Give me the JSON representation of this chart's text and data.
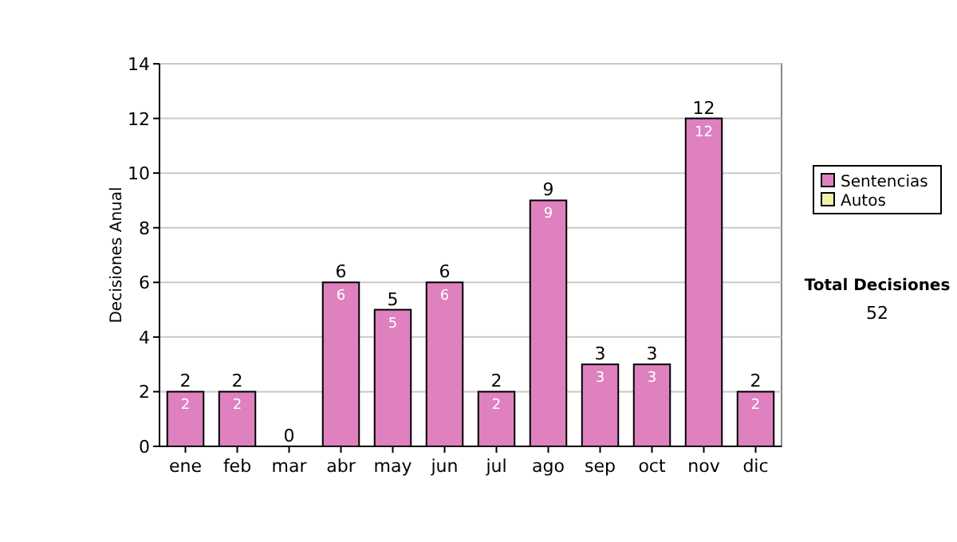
{
  "chart_data": {
    "type": "bar",
    "stacked": true,
    "categories": [
      "ene",
      "feb",
      "mar",
      "abr",
      "may",
      "jun",
      "jul",
      "ago",
      "sep",
      "oct",
      "nov",
      "dic"
    ],
    "series": [
      {
        "name": "Sentencias",
        "color": "#df80bf",
        "values": [
          2,
          2,
          0,
          6,
          5,
          6,
          2,
          9,
          3,
          3,
          12,
          2
        ],
        "value_labels": [
          "2",
          "2",
          null,
          "6",
          "5",
          "6",
          "2",
          "9",
          "3",
          "3",
          "12",
          "2"
        ]
      },
      {
        "name": "Autos",
        "color": "#f0f0a8",
        "values": [
          0,
          0,
          0,
          0,
          0,
          0,
          0,
          0,
          0,
          0,
          0,
          0
        ]
      }
    ],
    "totals": [
      "2",
      "2",
      "0",
      "6",
      "5",
      "6",
      "2",
      "9",
      "3",
      "3",
      "12",
      "2"
    ],
    "ylabel": "Decisiones Anual",
    "ylim": [
      0,
      14
    ],
    "yticks": [
      0,
      2,
      4,
      6,
      8,
      10,
      12,
      14
    ],
    "grid": "y",
    "legend": "right",
    "annotations": [
      "Total Decisiones",
      "52"
    ]
  }
}
